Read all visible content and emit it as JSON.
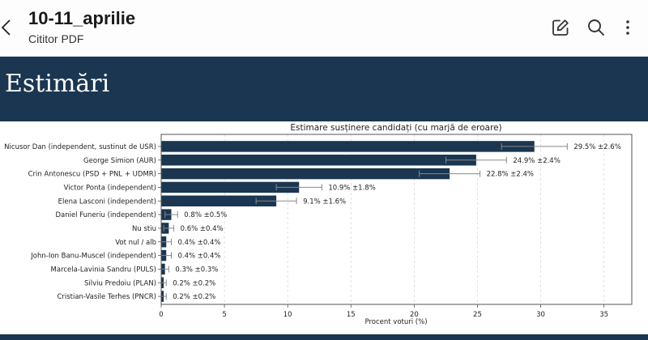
{
  "app": {
    "title": "10-11_aprilie",
    "subtitle": "Cititor PDF",
    "icons": [
      "back-chevron-icon",
      "edit-icon",
      "search-icon",
      "more-vertical-icon"
    ]
  },
  "banner": {
    "title": "Estimări"
  },
  "colors": {
    "bar": "#1b3650",
    "banner": "#1b3650",
    "errorbar": "#888888"
  },
  "chart_data": {
    "type": "bar",
    "orientation": "horizontal",
    "title": "Estimare susținere candidați (cu marjă de eroare)",
    "xlabel": "Procent voturi (%)",
    "ylabel": "",
    "xlim": [
      0,
      37.2
    ],
    "xticks": [
      0,
      5,
      10,
      15,
      20,
      25,
      30,
      35
    ],
    "grid": "x-dashed",
    "categories": [
      "Nicusor Dan (independent, sustinut de USR)",
      "George Simion (AUR)",
      "Crin Antonescu (PSD + PNL + UDMR)",
      "Victor Ponta (independent)",
      "Elena Lasconi (independent)",
      "Daniel Funeriu (independent)",
      "Nu stiu",
      "Vot nul / alb",
      "John-Ion Banu-Muscel (independent)",
      "Marcela-Lavinia Sandru (PULS)",
      "Silviu Predoiu (PLAN)",
      "Cristian-Vasile Terhes (PNCR)"
    ],
    "values": [
      29.5,
      24.9,
      22.8,
      10.9,
      9.1,
      0.8,
      0.6,
      0.4,
      0.4,
      0.3,
      0.2,
      0.2
    ],
    "errors": [
      2.6,
      2.4,
      2.4,
      1.8,
      1.6,
      0.5,
      0.4,
      0.4,
      0.4,
      0.3,
      0.2,
      0.2
    ],
    "data_labels": [
      "29.5% ±2.6%",
      "24.9% ±2.4%",
      "22.8% ±2.4%",
      "10.9% ±1.8%",
      "9.1% ±1.6%",
      "0.8% ±0.5%",
      "0.6% ±0.4%",
      "0.4% ±0.4%",
      "0.4% ±0.4%",
      "0.3% ±0.3%",
      "0.2% ±0.2%",
      "0.2% ±0.2%"
    ]
  }
}
